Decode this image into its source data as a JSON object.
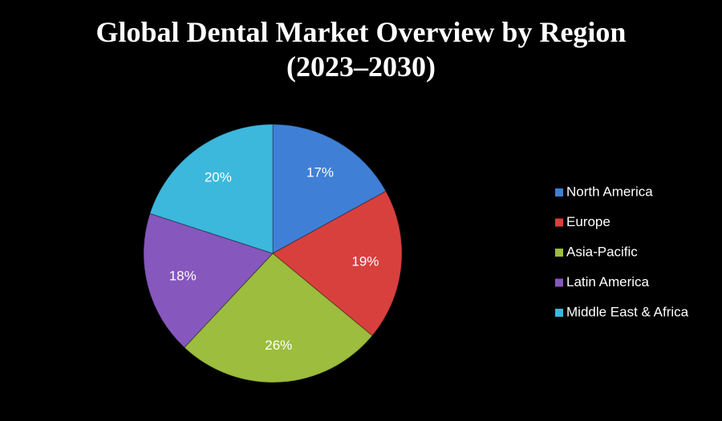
{
  "chart_data": {
    "type": "pie",
    "title": "Global Dental Market Overview by Region",
    "subtitle": "(2023–2030)",
    "categories": [
      "North America",
      "Europe",
      "Asia-Pacific",
      "Latin America",
      "Middle East & Africa"
    ],
    "values": [
      17,
      19,
      26,
      18,
      20
    ],
    "value_labels": [
      "17%",
      "19%",
      "26%",
      "18%",
      "20%"
    ],
    "colors": [
      "#3f7fd6",
      "#d8403e",
      "#9cbd3d",
      "#8657bd",
      "#3cb8dc"
    ],
    "legend": "right"
  }
}
